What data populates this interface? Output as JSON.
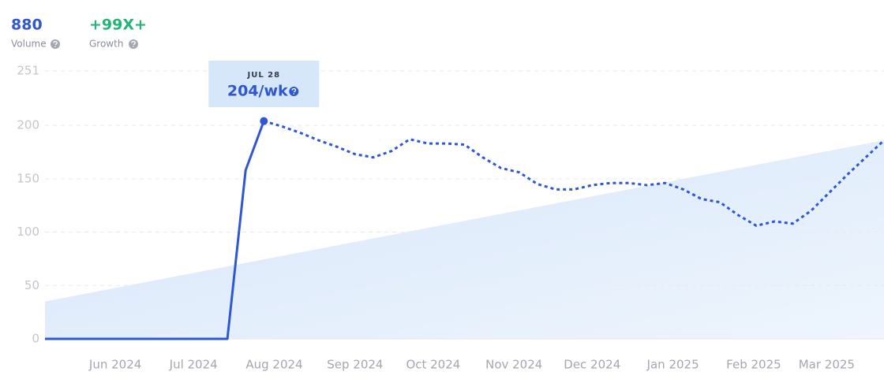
{
  "header": {
    "volume": "880",
    "volume_label": "Volume",
    "growth": "+99X+",
    "growth_label": "Growth"
  },
  "chart_data": {
    "type": "line",
    "color": "#2f57cf",
    "dashed_from_index": 12,
    "x": [
      0,
      1,
      2,
      3,
      4,
      5,
      6,
      7,
      8,
      9,
      10,
      11,
      12,
      13,
      14,
      15,
      16,
      17,
      18,
      19,
      20,
      21,
      22,
      23,
      24,
      25,
      26,
      27,
      28,
      29,
      30,
      31,
      32,
      33,
      34,
      35,
      36,
      37,
      38,
      39,
      40,
      41,
      42,
      43,
      44,
      45,
      46
    ],
    "values": [
      0,
      0,
      0,
      0,
      0,
      0,
      0,
      0,
      0,
      0,
      0,
      158,
      204,
      199,
      193,
      186,
      180,
      173,
      170,
      176,
      187,
      183,
      183,
      182,
      170,
      160,
      156,
      145,
      140,
      140,
      144,
      146,
      146,
      144,
      146,
      140,
      131,
      128,
      116,
      106,
      110,
      108,
      120,
      137,
      154,
      170,
      186
    ],
    "trend": [
      35,
      186
    ],
    "trend_color": "#dbe9fb",
    "xlim": [
      0,
      46
    ],
    "xticks": [
      {
        "value": 3.857,
        "label": "Jun 2024"
      },
      {
        "value": 8.143,
        "label": "Jul 2024"
      },
      {
        "value": 12.571,
        "label": "Aug 2024"
      },
      {
        "value": 17,
        "label": "Sep 2024"
      },
      {
        "value": 21.286,
        "label": "Oct 2024"
      },
      {
        "value": 25.714,
        "label": "Nov 2024"
      },
      {
        "value": 30,
        "label": "Dec 2024"
      },
      {
        "value": 34.429,
        "label": "Jan 2025"
      },
      {
        "value": 38.857,
        "label": "Feb 2025"
      },
      {
        "value": 42.857,
        "label": "Mar 2025"
      }
    ],
    "ylim": [
      0,
      251
    ],
    "yticks": [
      0,
      50,
      100,
      150,
      200,
      251
    ],
    "grid": true,
    "tooltip": {
      "index": 12,
      "date": "JUL 28",
      "value_label": "204/wk"
    }
  }
}
